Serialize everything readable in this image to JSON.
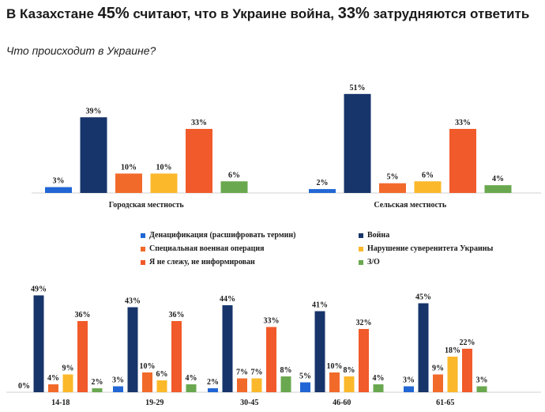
{
  "title": {
    "p1": "В Казахстане ",
    "n1": "45%",
    "p2": " считают, что в Украине война, ",
    "n2": "33%",
    "p3": " затрудняются ответить"
  },
  "subtitle": "Что происходит в Украине?",
  "colors": [
    "#2166d4",
    "#17356b",
    "#f26a2a",
    "#fbb82a",
    "#f15a2a",
    "#6aa84f"
  ],
  "legend": [
    "Денацификация (расшифровать термин)",
    "Война",
    "Специальная военная операция",
    "Нарушение суверенитета Украины",
    "Я не слежу, не информирован",
    "З/О"
  ],
  "chart_data": [
    {
      "type": "bar",
      "categories": [
        "Городская местность",
        "Сельская местность"
      ],
      "series": [
        {
          "name": "Денацификация (расшифровать термин)",
          "values": [
            3,
            2
          ]
        },
        {
          "name": "Война",
          "values": [
            39,
            51
          ]
        },
        {
          "name": "Специальная военная операция",
          "values": [
            10,
            5
          ]
        },
        {
          "name": "Нарушение суверенитета Украины",
          "values": [
            10,
            6
          ]
        },
        {
          "name": "Я не слежу, не информирован",
          "values": [
            33,
            33
          ]
        },
        {
          "name": "З/О",
          "values": [
            6,
            4
          ]
        }
      ],
      "unit": "%",
      "ylim": [
        0,
        55
      ]
    },
    {
      "type": "bar",
      "categories": [
        "14-18",
        "19-29",
        "30-45",
        "46-60",
        "61-65"
      ],
      "series": [
        {
          "name": "Денацификация (расшифровать термин)",
          "values": [
            0,
            3,
            2,
            5,
            3
          ]
        },
        {
          "name": "Война",
          "values": [
            49,
            43,
            44,
            41,
            45
          ]
        },
        {
          "name": "Специальная военная операция",
          "values": [
            4,
            10,
            7,
            10,
            9
          ]
        },
        {
          "name": "Нарушение суверенитета Украины",
          "values": [
            9,
            6,
            7,
            8,
            18
          ]
        },
        {
          "name": "Я не слежу, не информирован",
          "values": [
            36,
            36,
            33,
            32,
            22
          ]
        },
        {
          "name": "З/О",
          "values": [
            2,
            4,
            8,
            4,
            3
          ]
        }
      ],
      "unit": "%",
      "ylim": [
        0,
        52
      ]
    }
  ]
}
